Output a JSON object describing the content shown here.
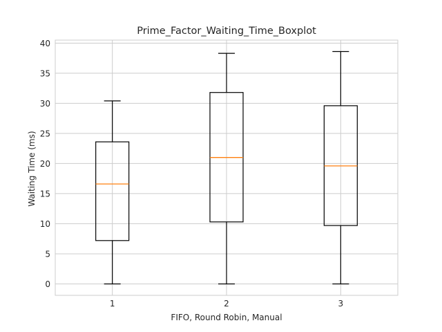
{
  "chart_data": {
    "type": "boxplot",
    "title": "Prime_Factor_Waiting_Time_Boxplot",
    "xlabel": "FIFO, Round Robin, Manual",
    "ylabel": "Waiting Time (ms)",
    "categories": [
      "1",
      "2",
      "3"
    ],
    "ylim": [
      -1.9,
      40.5
    ],
    "yticks": [
      0,
      5,
      10,
      15,
      20,
      25,
      30,
      35,
      40
    ],
    "grid": true,
    "boxes": [
      {
        "category": "1",
        "whisker_low": 0,
        "q1": 7.2,
        "median": 16.6,
        "q3": 23.6,
        "whisker_high": 30.4
      },
      {
        "category": "2",
        "whisker_low": 0,
        "q1": 10.3,
        "median": 21.0,
        "q3": 31.8,
        "whisker_high": 38.3
      },
      {
        "category": "3",
        "whisker_low": 0,
        "q1": 9.7,
        "median": 19.6,
        "q3": 29.6,
        "whisker_high": 38.6
      }
    ],
    "colors": {
      "box": "#000000",
      "median": "#ff7f0e",
      "grid": "#cccccc",
      "spine": "#cccccc"
    }
  }
}
